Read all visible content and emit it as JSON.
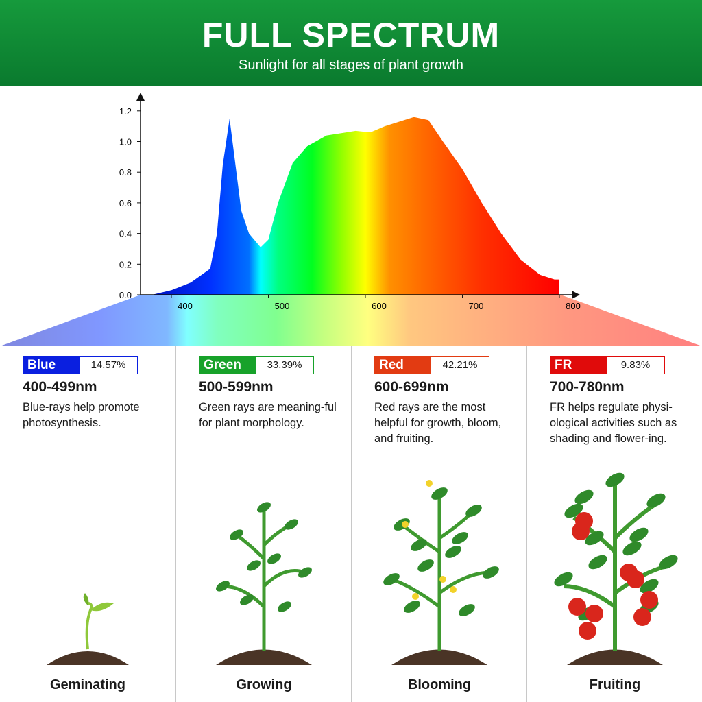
{
  "header": {
    "title": "FULL SPECTRUM",
    "subtitle": "Sunlight for all stages of plant growth"
  },
  "chart_data": {
    "type": "area",
    "title": "",
    "xlabel": "",
    "ylabel": "",
    "xlim": [
      368,
      830
    ],
    "ylim": [
      0,
      1.25
    ],
    "x_ticks": [
      "400",
      "500",
      "600",
      "700",
      "800"
    ],
    "y_ticks": [
      "0.0",
      "0.2",
      "0.4",
      "0.6",
      "0.8",
      "1.0",
      "1.2"
    ],
    "grid": false,
    "series": [
      {
        "x": [
          380,
          400,
          420,
          440,
          447,
          453,
          460,
          466,
          472,
          480,
          492,
          500,
          510,
          525,
          540,
          560,
          590,
          605,
          620,
          650,
          665,
          680,
          700,
          720,
          740,
          760,
          780,
          795,
          800
        ],
        "y": [
          0,
          0.03,
          0.08,
          0.17,
          0.4,
          0.85,
          1.15,
          0.85,
          0.55,
          0.4,
          0.31,
          0.36,
          0.6,
          0.86,
          0.97,
          1.04,
          1.07,
          1.06,
          1.1,
          1.16,
          1.14,
          1.0,
          0.82,
          0.6,
          0.4,
          0.23,
          0.13,
          0.1,
          0.1
        ]
      }
    ]
  },
  "colors": {
    "header": "#0f8a35",
    "blue": "#0a1fe0",
    "green": "#17a22a",
    "red": "#e23b12",
    "fr": "#e00b0b"
  },
  "bands": [
    {
      "name": "Blue",
      "percent": "14.57%",
      "range": "400-499nm",
      "desc": "Blue-rays help promote photosynthesis.",
      "stage": "Geminating",
      "color": "#0a1fe0"
    },
    {
      "name": "Green",
      "percent": "33.39%",
      "range": "500-599nm",
      "desc": "Green rays are meaning-ful for plant morphology.",
      "stage": "Growing",
      "color": "#17a22a"
    },
    {
      "name": "Red",
      "percent": "42.21%",
      "range": "600-699nm",
      "desc": "Red rays are the most helpful for growth, bloom, and fruiting.",
      "stage": "Blooming",
      "color": "#e23b12"
    },
    {
      "name": "FR",
      "percent": "9.83%",
      "range": "700-780nm",
      "desc": "FR helps regulate physi-ological activities such as shading and flower-ing.",
      "stage": "Fruiting",
      "color": "#e00b0b"
    }
  ]
}
